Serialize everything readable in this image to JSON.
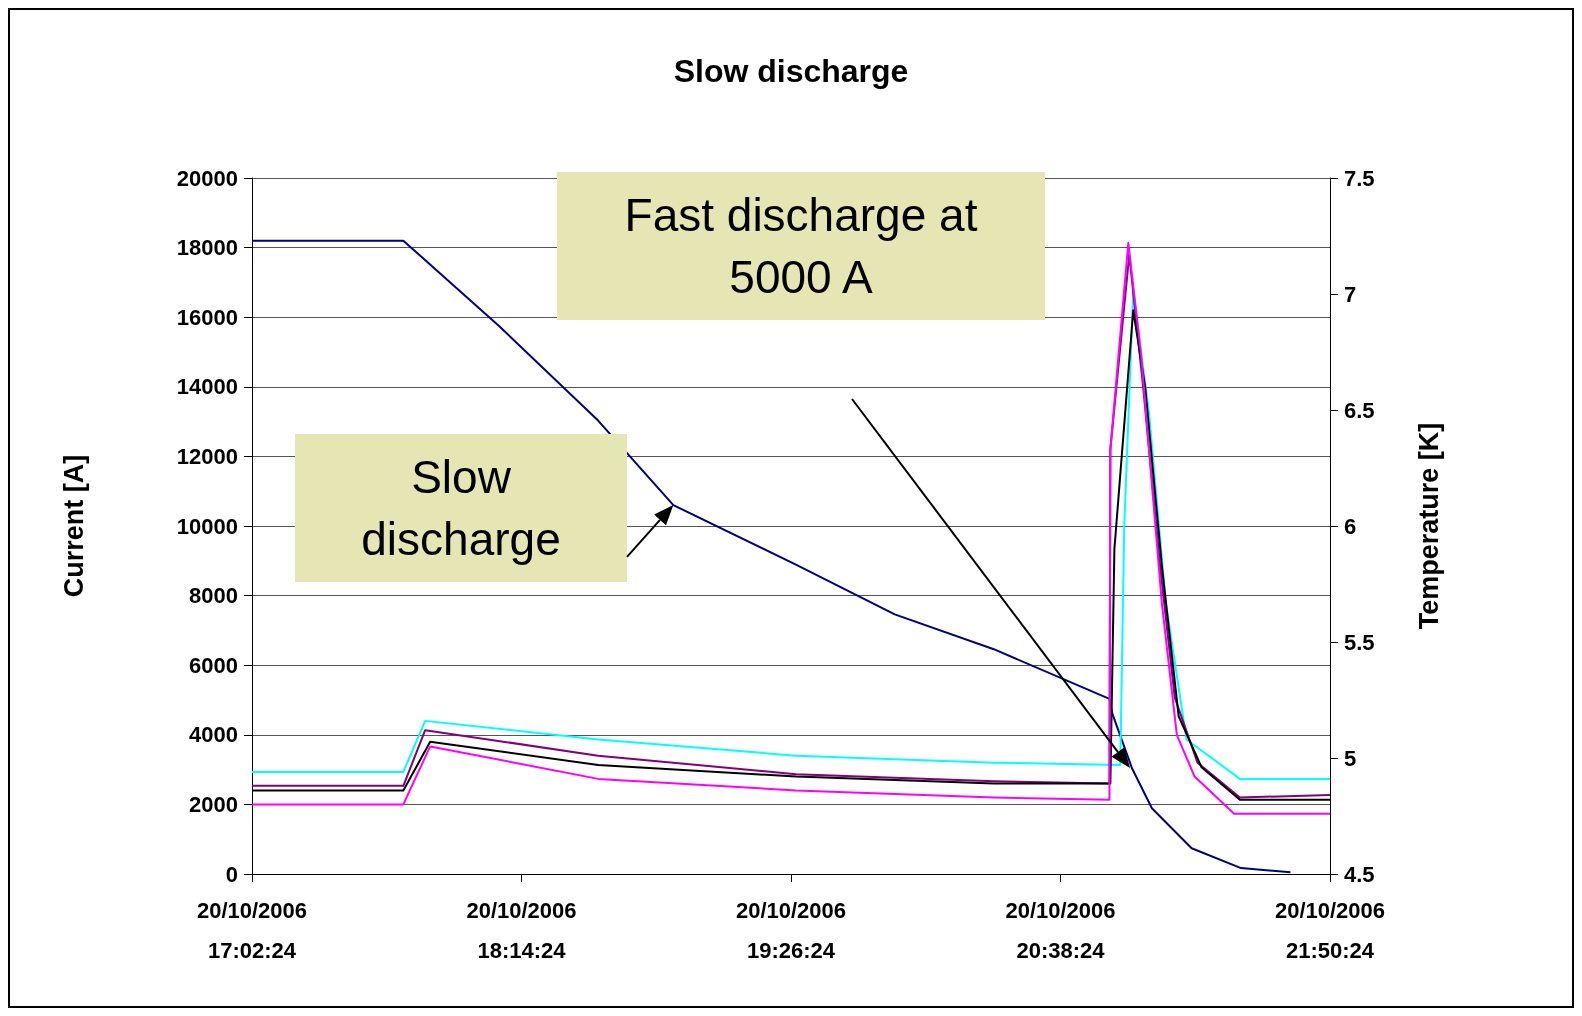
{
  "chart_data": {
    "type": "line",
    "title": "Slow discharge",
    "ylabel": "Current [A]",
    "y2label": "Temperature [K]",
    "xlim": [
      "2006-10-20T17:02:24",
      "2006-10-20T21:50:24"
    ],
    "xticks": [
      {
        "value": "2006-10-20T17:02:24",
        "label": "20/10/2006\n17:02:24"
      },
      {
        "value": "2006-10-20T18:14:24",
        "label": "20/10/2006\n18:14:24"
      },
      {
        "value": "2006-10-20T19:26:24",
        "label": "20/10/2006\n19:26:24"
      },
      {
        "value": "2006-10-20T20:38:24",
        "label": "20/10/2006\n20:38:24"
      },
      {
        "value": "2006-10-20T21:50:24",
        "label": "20/10/2006\n21:50:24"
      }
    ],
    "ylim": [
      0,
      20000
    ],
    "yticks": [
      0,
      2000,
      4000,
      6000,
      8000,
      10000,
      12000,
      14000,
      16000,
      18000,
      20000
    ],
    "y2lim": [
      4.5,
      7.5
    ],
    "y2ticks": [
      4.5,
      5,
      5.5,
      6,
      6.5,
      7,
      7.5
    ],
    "grid": "y",
    "series": [
      {
        "color": "#000080",
        "x": [
          "2006-10-20T17:02:24",
          "2006-10-20T17:42:50",
          "2006-10-20T18:08:28",
          "2006-10-20T18:34:52",
          "2006-10-20T18:54:58",
          "2006-10-20T19:27:43",
          "2006-10-20T19:54:07",
          "2006-10-20T20:20:35",
          "2006-10-20T20:51:29",
          "2006-10-20T20:52:16",
          "2006-10-20T20:57:32",
          "2006-10-20T21:02:49",
          "2006-10-20T21:13:26",
          "2006-10-20T21:26:38",
          "2006-10-20T21:39:50"
        ],
        "values": [
          18200,
          18200,
          15740,
          13030,
          10600,
          8890,
          7460,
          6460,
          5030,
          4600,
          3030,
          1890,
          740,
          170,
          50
        ]
      },
      {
        "color": "#00ffff",
        "axis": "y2",
        "x": [
          "2006-10-20T17:02:24",
          "2006-10-20T17:42:50",
          "2006-10-20T17:48:40",
          "2006-10-20T18:34:52",
          "2006-10-20T19:27:43",
          "2006-10-20T20:20:35",
          "2006-10-20T20:54:22",
          "2006-10-20T20:55:26",
          "2006-10-20T20:57:50",
          "2006-10-20T21:02:02",
          "2006-10-20T21:06:32",
          "2006-10-20T21:12:04",
          "2006-10-20T21:26:20",
          "2006-10-20T21:50:24"
        ],
        "values": [
          4.94,
          4.94,
          5.16,
          5.08,
          5.01,
          4.98,
          4.97,
          6.0,
          7.01,
          6.49,
          5.67,
          5.08,
          4.91,
          4.91
        ]
      },
      {
        "color": "#800080",
        "axis": "y2",
        "x": [
          "2006-10-20T17:02:24",
          "2006-10-20T17:42:50",
          "2006-10-20T17:48:40",
          "2006-10-20T18:34:52",
          "2006-10-20T19:27:43",
          "2006-10-20T20:20:35",
          "2006-10-20T20:51:29",
          "2006-10-20T20:51:43",
          "2006-10-20T20:56:46",
          "2006-10-20T21:00:29",
          "2006-10-20T21:04:59",
          "2006-10-20T21:08:56",
          "2006-10-20T21:15:00",
          "2006-10-20T21:26:20",
          "2006-10-20T21:50:24"
        ],
        "values": [
          4.88,
          4.88,
          5.12,
          5.01,
          4.93,
          4.9,
          4.89,
          6.33,
          7.17,
          6.6,
          5.83,
          5.26,
          4.98,
          4.83,
          4.84
        ]
      },
      {
        "color": "#000000",
        "axis": "y2",
        "x": [
          "2006-10-20T17:02:24",
          "2006-10-20T17:42:50",
          "2006-10-20T17:50:00",
          "2006-10-20T18:34:52",
          "2006-10-20T19:27:43",
          "2006-10-20T20:20:35",
          "2006-10-20T20:51:43",
          "2006-10-20T20:52:48",
          "2006-10-20T20:57:50",
          "2006-10-20T21:01:01",
          "2006-10-20T21:05:28",
          "2006-10-20T21:09:58",
          "2006-10-20T21:16:05",
          "2006-10-20T21:26:20",
          "2006-10-20T21:50:24"
        ],
        "values": [
          4.86,
          4.86,
          5.07,
          4.97,
          4.92,
          4.89,
          4.89,
          5.9,
          6.93,
          6.6,
          5.83,
          5.18,
          4.96,
          4.82,
          4.82
        ]
      },
      {
        "color": "#ff00ff",
        "axis": "y2",
        "x": [
          "2006-10-20T17:02:24",
          "2006-10-20T17:42:50",
          "2006-10-20T17:50:00",
          "2006-10-20T18:34:52",
          "2006-10-20T19:27:43",
          "2006-10-20T20:20:35",
          "2006-10-20T20:51:29",
          "2006-10-20T20:51:43",
          "2006-10-20T20:56:31",
          "2006-10-20T20:59:56",
          "2006-10-20T21:05:28",
          "2006-10-20T21:09:29",
          "2006-10-20T21:14:13",
          "2006-10-20T21:24:47",
          "2006-10-20T21:50:24"
        ],
        "values": [
          4.8,
          4.8,
          5.05,
          4.91,
          4.86,
          4.83,
          4.82,
          6.33,
          7.22,
          6.74,
          5.67,
          5.1,
          4.92,
          4.76,
          4.76
        ]
      }
    ],
    "annotations": [
      "Fast discharge at 5000 A",
      {
        "text": "Slow discharge",
        "x": "2006-10-20T18:54:58",
        "y": 10600
      }
    ]
  }
}
